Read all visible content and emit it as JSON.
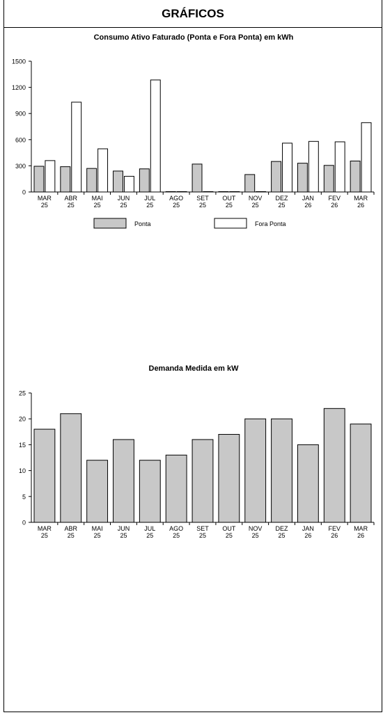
{
  "header": {
    "title": "GRÁFICOS"
  },
  "chart_data": [
    {
      "type": "bar",
      "title": "Consumo Ativo Faturado (Ponta e Fora Ponta) em kWh",
      "categories": [
        [
          "MAR",
          "25"
        ],
        [
          "ABR",
          "25"
        ],
        [
          "MAI",
          "25"
        ],
        [
          "JUN",
          "25"
        ],
        [
          "JUL",
          "25"
        ],
        [
          "AGO",
          "25"
        ],
        [
          "SET",
          "25"
        ],
        [
          "OUT",
          "25"
        ],
        [
          "NOV",
          "25"
        ],
        [
          "DEZ",
          "25"
        ],
        [
          "JAN",
          "26"
        ],
        [
          "FEV",
          "26"
        ],
        [
          "MAR",
          "26"
        ]
      ],
      "series": [
        {
          "name": "Ponta",
          "color": "#c8c8c8",
          "values": [
            295,
            290,
            270,
            240,
            265,
            0,
            320,
            0,
            200,
            350,
            330,
            305,
            355
          ]
        },
        {
          "name": "Fora Ponta",
          "color": "#ffffff",
          "values": [
            360,
            1030,
            495,
            180,
            1285,
            0,
            0,
            0,
            0,
            560,
            580,
            575,
            795
          ]
        }
      ],
      "ylim": [
        0,
        1500
      ],
      "yticks": [
        0,
        300,
        600,
        900,
        1200,
        1500
      ],
      "legend_position": "bottom",
      "grid": false
    },
    {
      "type": "bar",
      "title": "Demanda Medida em kW",
      "categories": [
        [
          "MAR",
          "25"
        ],
        [
          "ABR",
          "25"
        ],
        [
          "MAI",
          "25"
        ],
        [
          "JUN",
          "25"
        ],
        [
          "JUL",
          "25"
        ],
        [
          "AGO",
          "25"
        ],
        [
          "SET",
          "25"
        ],
        [
          "OUT",
          "25"
        ],
        [
          "NOV",
          "25"
        ],
        [
          "DEZ",
          "25"
        ],
        [
          "JAN",
          "26"
        ],
        [
          "FEV",
          "26"
        ],
        [
          "MAR",
          "26"
        ]
      ],
      "series": [
        {
          "color": "#c8c8c8",
          "values": [
            18,
            21,
            12,
            16,
            12,
            13,
            16,
            17,
            20,
            20,
            15,
            22,
            19
          ]
        }
      ],
      "ylim": [
        0,
        25
      ],
      "yticks": [
        0,
        5,
        10,
        15,
        20,
        25
      ],
      "grid": false
    }
  ]
}
